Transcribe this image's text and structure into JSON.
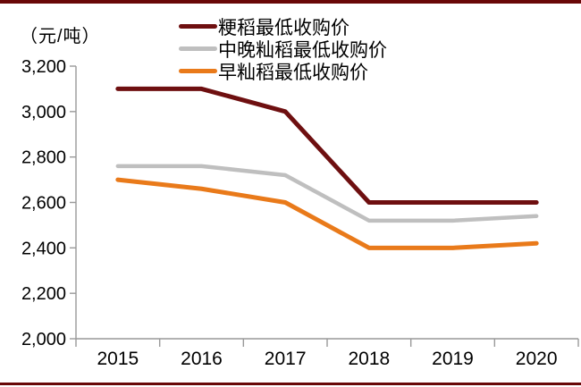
{
  "page": {
    "background": "#ffffff",
    "accent_border_color": "#690808"
  },
  "axis": {
    "line_color": "#999999",
    "tick_label_color": "#000000"
  },
  "chart_data": {
    "type": "line",
    "title": "",
    "unit_label": "（元/吨）",
    "xlabel": "",
    "ylabel": "元/吨",
    "categories": [
      "2015",
      "2016",
      "2017",
      "2018",
      "2019",
      "2020"
    ],
    "series": [
      {
        "name": "粳稻最低收购价",
        "color": "#6E0F10",
        "values": [
          3100,
          3100,
          3000,
          2600,
          2600,
          2600
        ]
      },
      {
        "name": "中晚籼稻最低收购价",
        "color": "#BFBFBF",
        "values": [
          2760,
          2760,
          2720,
          2520,
          2520,
          2540
        ]
      },
      {
        "name": "早籼稻最低收购价",
        "color": "#E97A1A",
        "values": [
          2700,
          2660,
          2600,
          2400,
          2400,
          2420
        ]
      }
    ],
    "ylim": [
      2000,
      3200
    ],
    "ytick_step": 200,
    "ytick_labels": [
      "3,200",
      "3,000",
      "2,800",
      "2,600",
      "2,400",
      "2,200",
      "2,000"
    ],
    "legend_position": "top-center",
    "grid": false
  }
}
